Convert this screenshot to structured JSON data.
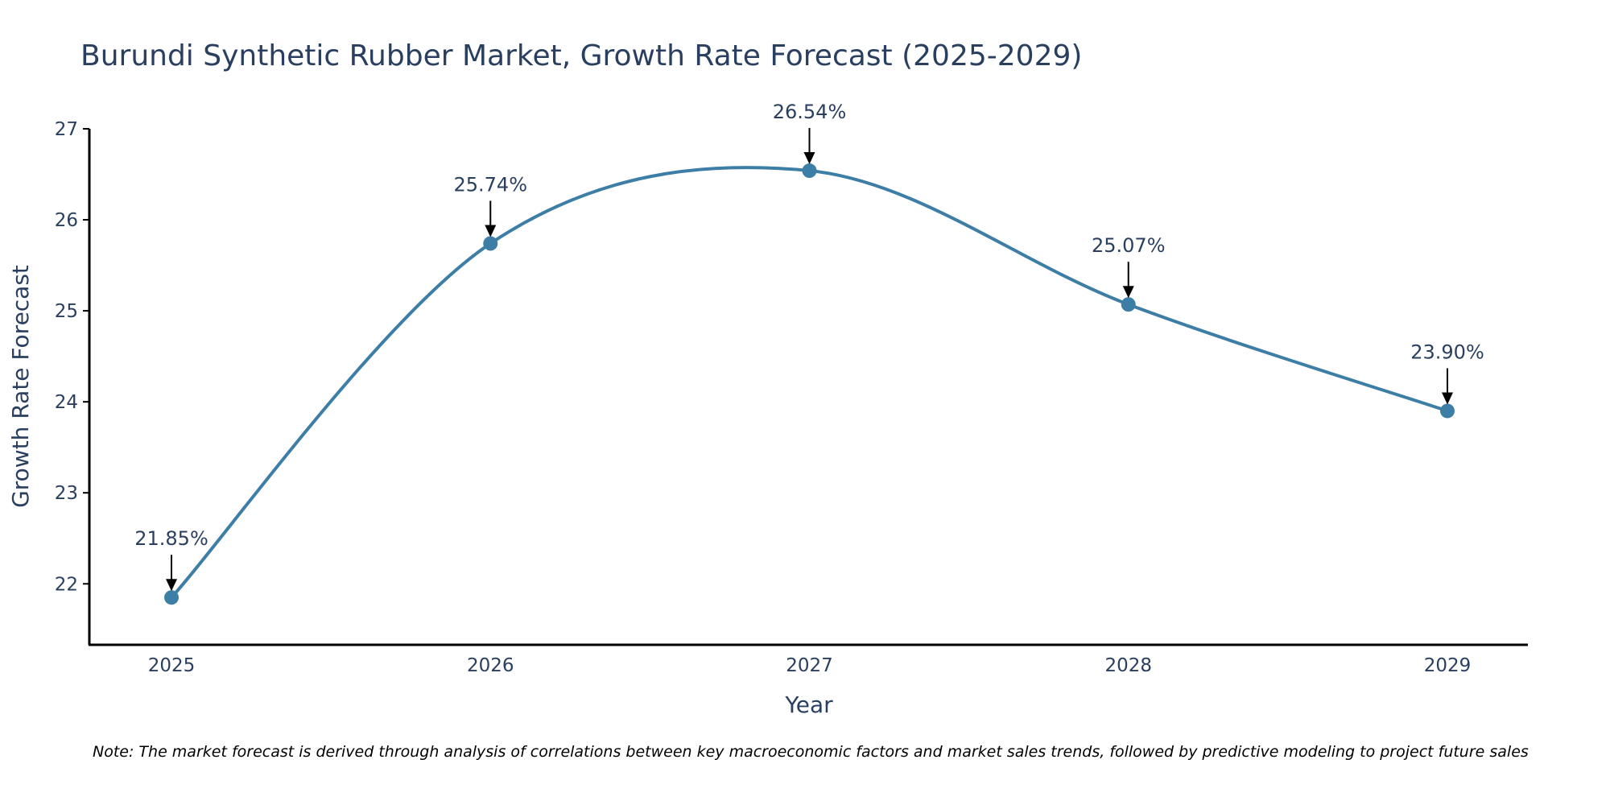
{
  "chart_data": {
    "type": "line",
    "title": "Burundi Synthetic Rubber Market, Growth Rate Forecast (2025-2029)",
    "xlabel": "Year",
    "ylabel": "Growth Rate Forecast",
    "categories": [
      "2025",
      "2026",
      "2027",
      "2028",
      "2029"
    ],
    "values": [
      21.85,
      25.74,
      26.54,
      25.07,
      23.9
    ],
    "data_labels": [
      "21.85%",
      "25.74%",
      "26.54%",
      "25.07%",
      "23.90%"
    ],
    "ylim": [
      21.33,
      27.0
    ],
    "yticks": [
      22,
      23,
      24,
      25,
      26,
      27
    ],
    "ytick_labels": [
      "22",
      "23",
      "24",
      "25",
      "26",
      "27"
    ],
    "line_shape": "spline",
    "grid": false,
    "legend": "none",
    "series_color": "#3d7ea6",
    "marker_color": "#3d7ea6",
    "annotation_arrow_color": "#000000",
    "note": "Note: The market forecast is derived through analysis of correlations between key macroeconomic factors and market sales trends, followed by predictive modeling to project future sales"
  }
}
